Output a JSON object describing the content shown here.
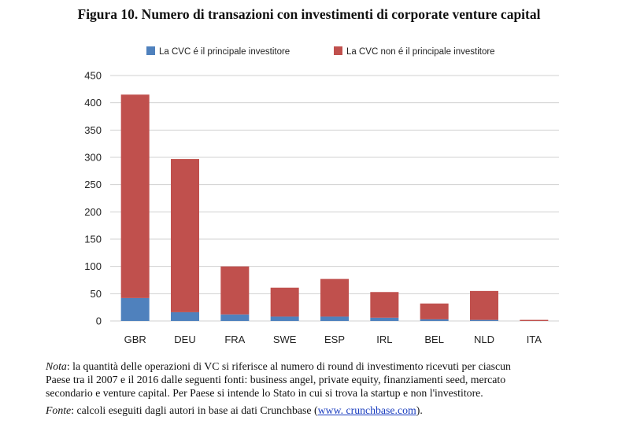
{
  "title": "Figura 10. Numero di transazioni con investimenti di corporate venture capital",
  "colors": {
    "primary": "#4f81bd",
    "non_primary": "#c0504d",
    "grid": "#d0d0d0"
  },
  "chart_data": {
    "type": "bar",
    "stacked": true,
    "categories": [
      "GBR",
      "DEU",
      "FRA",
      "SWE",
      "ESP",
      "IRL",
      "BEL",
      "NLD",
      "ITA"
    ],
    "series": [
      {
        "name": "La CVC é il principale investitore",
        "color": "#4f81bd",
        "values": [
          42,
          16,
          12,
          8,
          8,
          6,
          3,
          2,
          0
        ]
      },
      {
        "name": "La CVC non é il principale investitore",
        "color": "#c0504d",
        "values": [
          373,
          281,
          88,
          53,
          69,
          47,
          29,
          53,
          2
        ]
      }
    ],
    "ylim": [
      0,
      450
    ],
    "yticks": [
      0,
      50,
      100,
      150,
      200,
      250,
      300,
      350,
      400,
      450
    ],
    "grid": true,
    "legend": "top"
  },
  "notes": {
    "nota_label": "Nota",
    "nota_line1": ": la quantità delle operazioni di VC si riferisce al numero di round di investimento ricevuti per ciascun",
    "nota_line2": "Paese tra il 2007 e il 2016 dalle seguenti fonti: business angel, private equity, finanziamenti seed, mercato",
    "nota_line3": "secondario e venture capital. Per Paese si intende lo Stato in cui si trova la startup e non l'investitore.",
    "fonte_label": "Fonte",
    "fonte_text": ": calcoli eseguiti dagli autori in base ai dati Crunchbase (",
    "fonte_link": "www. crunchbase.com",
    "fonte_end": ")."
  }
}
